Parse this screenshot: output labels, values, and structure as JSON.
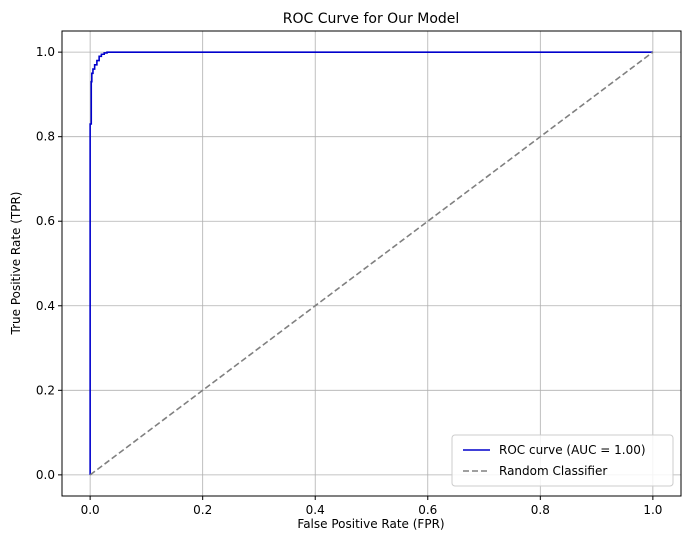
{
  "chart_data": {
    "type": "line",
    "title": "ROC Curve for Our Model",
    "xlabel": "False Positive Rate (FPR)",
    "ylabel": "True Positive Rate (TPR)",
    "xlim": [
      -0.05,
      1.05
    ],
    "ylim": [
      -0.05,
      1.05
    ],
    "xticks": [
      "0.0",
      "0.2",
      "0.4",
      "0.6",
      "0.8",
      "1.0"
    ],
    "yticks": [
      "0.0",
      "0.2",
      "0.4",
      "0.6",
      "0.8",
      "1.0"
    ],
    "grid": true,
    "legend_position": "lower-right",
    "series": [
      {
        "name": "ROC curve (AUC = 1.00)",
        "color": "#0000cc",
        "style": "solid",
        "x": [
          0.0,
          0.0,
          0.002,
          0.002,
          0.003,
          0.003,
          0.005,
          0.005,
          0.008,
          0.008,
          0.012,
          0.012,
          0.016,
          0.016,
          0.02,
          0.02,
          0.025,
          0.025,
          0.03,
          0.03,
          1.0
        ],
        "y": [
          0.0,
          0.83,
          0.83,
          0.93,
          0.93,
          0.95,
          0.95,
          0.96,
          0.96,
          0.97,
          0.97,
          0.98,
          0.98,
          0.99,
          0.99,
          0.995,
          0.995,
          0.998,
          0.998,
          1.0,
          1.0
        ]
      },
      {
        "name": "Random Classifier",
        "color": "#808080",
        "style": "dashed",
        "x": [
          0.0,
          1.0
        ],
        "y": [
          0.0,
          1.0
        ]
      }
    ]
  }
}
